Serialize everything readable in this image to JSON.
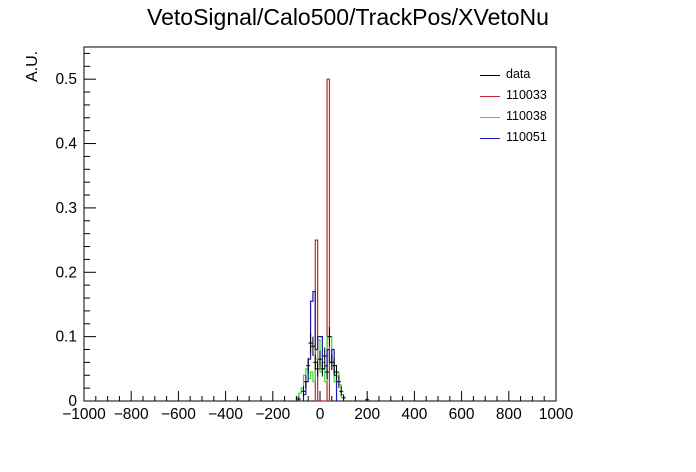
{
  "title": "VetoSignal/Calo500/TrackPos/XVetoNu",
  "chart_data": {
    "type": "histogram",
    "title": "VetoSignal/Calo500/TrackPos/XVetoNu",
    "xlabel": "",
    "ylabel": "A.U.",
    "xlim": [
      -1000,
      1000
    ],
    "ylim": [
      0,
      0.55
    ],
    "x_ticks": [
      -1000,
      -800,
      -600,
      -400,
      -200,
      0,
      200,
      400,
      600,
      800,
      1000
    ],
    "y_ticks": [
      0,
      0.1,
      0.2,
      0.3,
      0.4,
      0.5
    ],
    "x_tick_labels": [
      "−1000",
      "−800",
      "−600",
      "−400",
      "−200",
      "0",
      "200",
      "400",
      "600",
      "800",
      "1000"
    ],
    "y_tick_labels": [
      "0",
      "0.1",
      "0.2",
      "0.3",
      "0.4",
      "0.5"
    ],
    "legend_position": "top-right",
    "series": [
      {
        "name": "data",
        "color": "#000000",
        "style": "points-with-errors",
        "points": [
          {
            "x": -90,
            "y": 0.003,
            "err": 0.004
          },
          {
            "x": -70,
            "y": 0.015,
            "err": 0.008
          },
          {
            "x": -60,
            "y": 0.03,
            "err": 0.01
          },
          {
            "x": -50,
            "y": 0.055,
            "err": 0.012
          },
          {
            "x": -40,
            "y": 0.09,
            "err": 0.015
          },
          {
            "x": -30,
            "y": 0.085,
            "err": 0.015
          },
          {
            "x": -20,
            "y": 0.06,
            "err": 0.012
          },
          {
            "x": -10,
            "y": 0.05,
            "err": 0.012
          },
          {
            "x": 0,
            "y": 0.065,
            "err": 0.013
          },
          {
            "x": 10,
            "y": 0.05,
            "err": 0.012
          },
          {
            "x": 20,
            "y": 0.07,
            "err": 0.013
          },
          {
            "x": 30,
            "y": 0.045,
            "err": 0.011
          },
          {
            "x": 40,
            "y": 0.1,
            "err": 0.015
          },
          {
            "x": 50,
            "y": 0.06,
            "err": 0.012
          },
          {
            "x": 60,
            "y": 0.055,
            "err": 0.012
          },
          {
            "x": 70,
            "y": 0.045,
            "err": 0.011
          },
          {
            "x": 80,
            "y": 0.03,
            "err": 0.01
          },
          {
            "x": 90,
            "y": 0.015,
            "err": 0.008
          },
          {
            "x": 100,
            "y": 0.005,
            "err": 0.005
          },
          {
            "x": 200,
            "y": 0.002,
            "err": 0.003
          }
        ]
      },
      {
        "name": "110033",
        "color": "#c0282d",
        "style": "step",
        "edges": [
          -20,
          -10,
          0,
          30,
          40,
          50
        ],
        "values": [
          0.25,
          0.0,
          0.0,
          0.5,
          0.0
        ]
      },
      {
        "name": "110038",
        "color": "#33dd33",
        "style": "step",
        "edges": [
          -100,
          -90,
          -80,
          -70,
          -60,
          -50,
          -40,
          -30,
          -20,
          -10,
          0,
          10,
          20,
          30,
          40,
          50,
          60,
          70,
          80,
          90,
          100
        ],
        "values": [
          0.005,
          0.012,
          0.02,
          0.04,
          0.05,
          0.035,
          0.045,
          0.03,
          0.065,
          0.095,
          0.045,
          0.06,
          0.03,
          0.1,
          0.1,
          0.055,
          0.03,
          0.045,
          0.025,
          0.01
        ]
      },
      {
        "name": "110051",
        "color": "#1a1ab0",
        "style": "step",
        "edges": [
          -70,
          -60,
          -50,
          -40,
          -30,
          -20,
          -10,
          0,
          10,
          20,
          30,
          40,
          50,
          60,
          70
        ],
        "values": [
          0.01,
          0.03,
          0.065,
          0.155,
          0.17,
          0.08,
          0.1,
          0.1,
          0.05,
          0.055,
          0.08,
          0.06,
          0.08,
          0.04
        ]
      }
    ]
  }
}
